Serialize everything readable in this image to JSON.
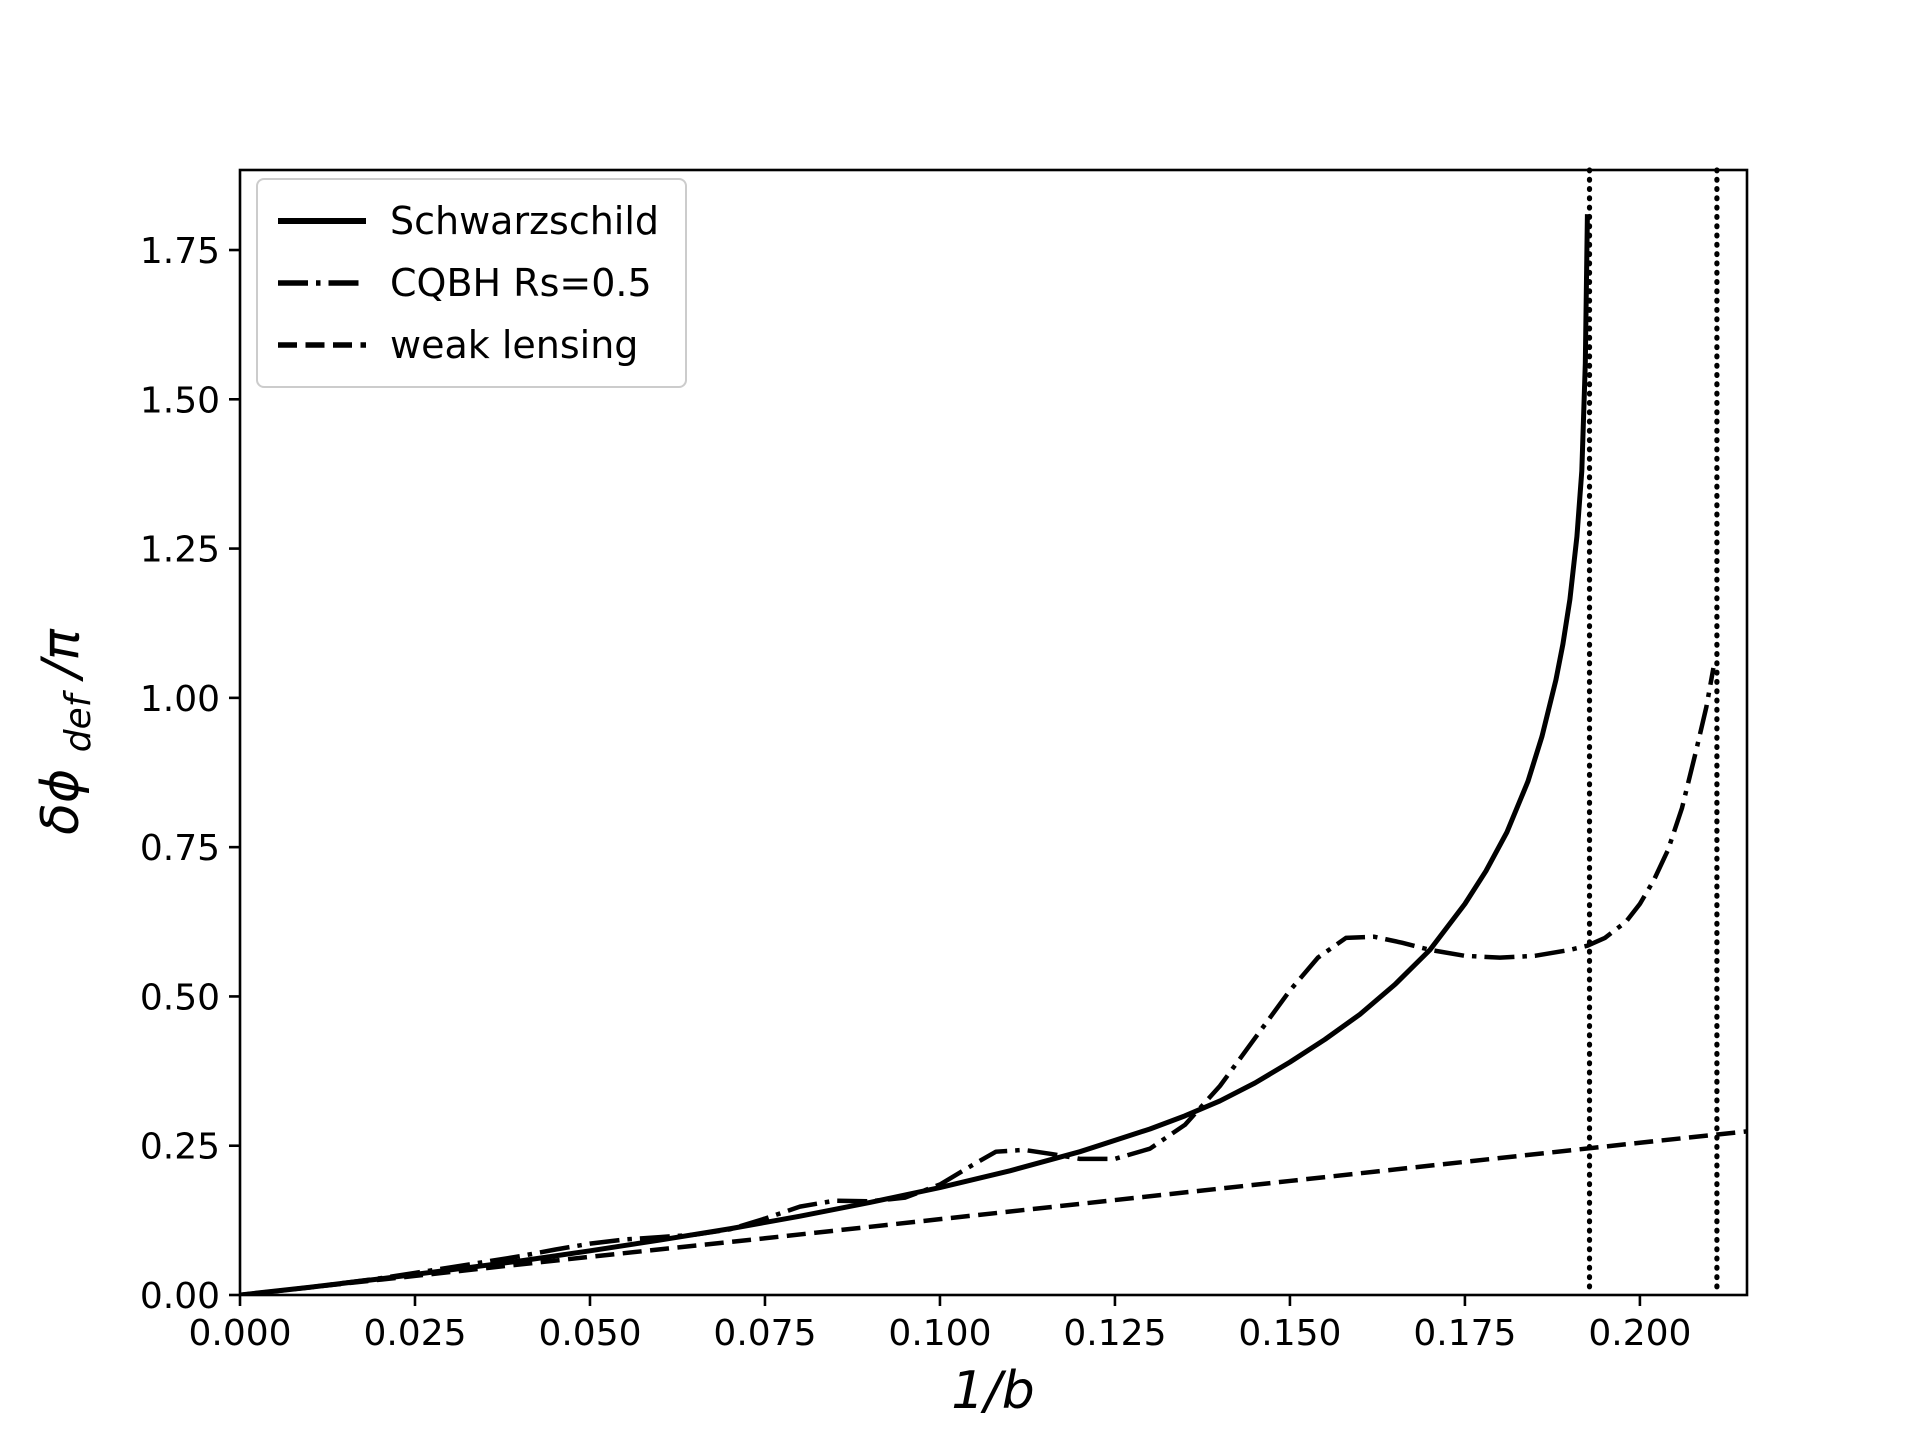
{
  "figure": {
    "background": "#ffffff",
    "line_color": "#000000",
    "legend_edge_color": "#cccccc"
  },
  "chart_data": {
    "type": "line",
    "title": "",
    "xlabel": "1/b",
    "ylabel": "δϕdef/π",
    "ylabel_parts": {
      "prefix": "δϕ",
      "sub": "def",
      "suffix": "/π"
    },
    "grid": false,
    "legend_position": "upper-left",
    "xlim": [
      0,
      0.2153
    ],
    "ylim": [
      0,
      1.884
    ],
    "xticks": [
      0.0,
      0.025,
      0.05,
      0.075,
      0.1,
      0.125,
      0.15,
      0.175,
      0.2
    ],
    "xtick_labels": [
      "0.000",
      "0.025",
      "0.050",
      "0.075",
      "0.100",
      "0.125",
      "0.150",
      "0.175",
      "0.200"
    ],
    "yticks": [
      0.0,
      0.25,
      0.5,
      0.75,
      1.0,
      1.25,
      1.5,
      1.75
    ],
    "ytick_labels": [
      "0.00",
      "0.25",
      "0.50",
      "0.75",
      "1.00",
      "1.25",
      "1.50",
      "1.75"
    ],
    "series": [
      {
        "name": "Schwarzschild",
        "style": "solid",
        "x": [
          0,
          0.01,
          0.02,
          0.03,
          0.04,
          0.05,
          0.06,
          0.07,
          0.08,
          0.09,
          0.1,
          0.11,
          0.12,
          0.13,
          0.135,
          0.14,
          0.145,
          0.15,
          0.155,
          0.16,
          0.165,
          0.17,
          0.175,
          0.178,
          0.181,
          0.184,
          0.186,
          0.188,
          0.189,
          0.19,
          0.191,
          0.1917,
          0.1922,
          0.1925
        ],
        "y": [
          0,
          0.013,
          0.027,
          0.042,
          0.057,
          0.074,
          0.092,
          0.111,
          0.132,
          0.155,
          0.18,
          0.208,
          0.24,
          0.278,
          0.3,
          0.325,
          0.355,
          0.39,
          0.428,
          0.47,
          0.52,
          0.578,
          0.655,
          0.71,
          0.775,
          0.86,
          0.935,
          1.03,
          1.09,
          1.165,
          1.27,
          1.38,
          1.56,
          1.81
        ]
      },
      {
        "name": "CQBH Rs=0.5",
        "style": "dashdot",
        "x": [
          0,
          0.01,
          0.02,
          0.03,
          0.04,
          0.045,
          0.05,
          0.055,
          0.06,
          0.065,
          0.07,
          0.075,
          0.08,
          0.085,
          0.09,
          0.095,
          0.1,
          0.105,
          0.108,
          0.112,
          0.116,
          0.12,
          0.125,
          0.13,
          0.135,
          0.14,
          0.145,
          0.15,
          0.154,
          0.158,
          0.162,
          0.166,
          0.17,
          0.175,
          0.18,
          0.185,
          0.19,
          0.1925,
          0.195,
          0.198,
          0.2,
          0.202,
          0.204,
          0.206,
          0.208,
          0.2095,
          0.2105
        ],
        "y": [
          0,
          0.013,
          0.028,
          0.046,
          0.065,
          0.076,
          0.086,
          0.093,
          0.097,
          0.101,
          0.11,
          0.128,
          0.148,
          0.158,
          0.157,
          0.163,
          0.185,
          0.22,
          0.24,
          0.243,
          0.236,
          0.228,
          0.228,
          0.245,
          0.285,
          0.35,
          0.43,
          0.51,
          0.565,
          0.598,
          0.6,
          0.59,
          0.578,
          0.568,
          0.565,
          0.568,
          0.578,
          0.585,
          0.598,
          0.625,
          0.655,
          0.695,
          0.745,
          0.815,
          0.91,
          0.985,
          1.05
        ]
      },
      {
        "name": "weak lensing",
        "style": "dashed",
        "x": [
          0,
          0.025,
          0.05,
          0.075,
          0.1,
          0.125,
          0.15,
          0.175,
          0.2,
          0.2153
        ],
        "y": [
          0,
          0.032,
          0.064,
          0.095,
          0.127,
          0.159,
          0.191,
          0.223,
          0.255,
          0.274
        ]
      }
    ],
    "vlines": {
      "style": "dotted",
      "x": [
        0.1928,
        0.211
      ]
    }
  }
}
